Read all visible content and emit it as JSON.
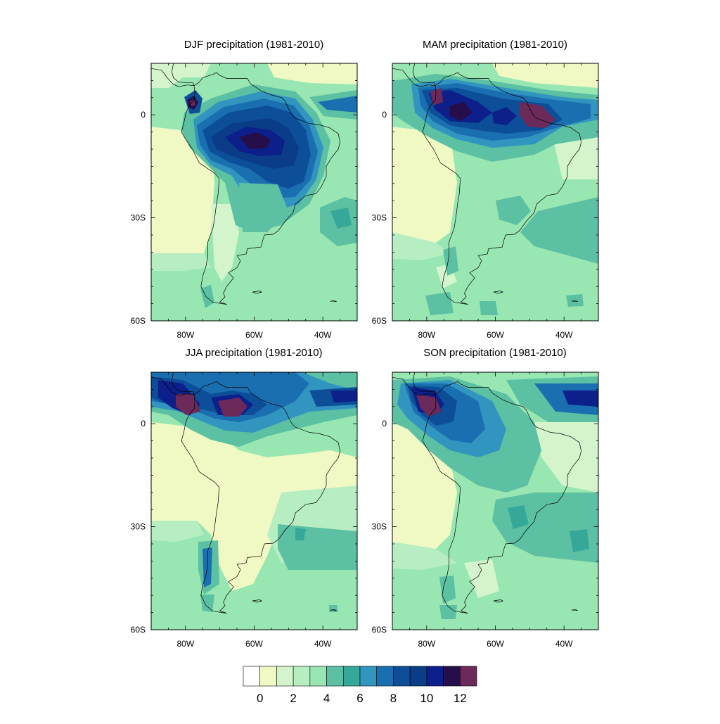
{
  "panels": [
    {
      "title": "DJF precipitation (1981-2010)",
      "season": "DJF"
    },
    {
      "title": "MAM precipitation (1981-2010)",
      "season": "MAM"
    },
    {
      "title": "JJA precipitation (1981-2010)",
      "season": "JJA"
    },
    {
      "title": "SON precipitation (1981-2010)",
      "season": "SON"
    }
  ],
  "axes": {
    "lon_range": [
      -90,
      -30
    ],
    "lat_range": [
      -60,
      15
    ],
    "y_ticks": [
      {
        "value": 0,
        "label": "0"
      },
      {
        "value": -30,
        "label": "30S"
      },
      {
        "value": -60,
        "label": "60S"
      }
    ],
    "x_ticks": [
      {
        "value": -80,
        "label": "80W"
      },
      {
        "value": -60,
        "label": "60W"
      },
      {
        "value": -40,
        "label": "40W"
      }
    ]
  },
  "colorbar": {
    "boundaries": [
      "0",
      "2",
      "4",
      "6",
      "8",
      "10",
      "12"
    ],
    "colors": [
      "#ffffff",
      "#f0f9c4",
      "#d4f5cc",
      "#b6eec2",
      "#98e6b2",
      "#5cc0a2",
      "#36a89a",
      "#3295c0",
      "#1a6fb0",
      "#0c4e98",
      "#0a3c88",
      "#0c1f8a",
      "#250e4a",
      "#6b2a5a"
    ]
  }
}
